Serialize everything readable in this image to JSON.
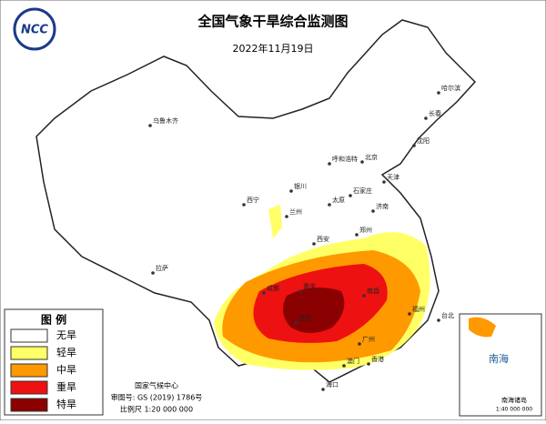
{
  "header": {
    "logo": "NCC",
    "title": "全国气象干旱综合监测图",
    "date": "2022年11月19日"
  },
  "legend": {
    "title": "图 例",
    "items": [
      {
        "label": "无旱",
        "color": "#ffffff"
      },
      {
        "label": "轻旱",
        "color": "#ffff66"
      },
      {
        "label": "中旱",
        "color": "#ff9900"
      },
      {
        "label": "重旱",
        "color": "#ee1111"
      },
      {
        "label": "特旱",
        "color": "#8b0000"
      }
    ]
  },
  "cities": [
    "乌鲁木齐",
    "哈尔滨",
    "长春",
    "沈阳",
    "呼和浩特",
    "北京",
    "天津",
    "石家庄",
    "太原",
    "济南",
    "银川",
    "兰州",
    "西宁",
    "郑州",
    "西安",
    "拉萨",
    "成都",
    "重庆",
    "贵阳",
    "南昌",
    "广州",
    "澳门",
    "香港",
    "海口",
    "福州",
    "台北"
  ],
  "credits": [
    "国家气候中心",
    "审图号: GS (2019) 1786号",
    "比例尺 1:20 000 000"
  ],
  "inset": {
    "sea": "南海",
    "islands": "南海诸岛",
    "scale": "1:40 000 000"
  }
}
